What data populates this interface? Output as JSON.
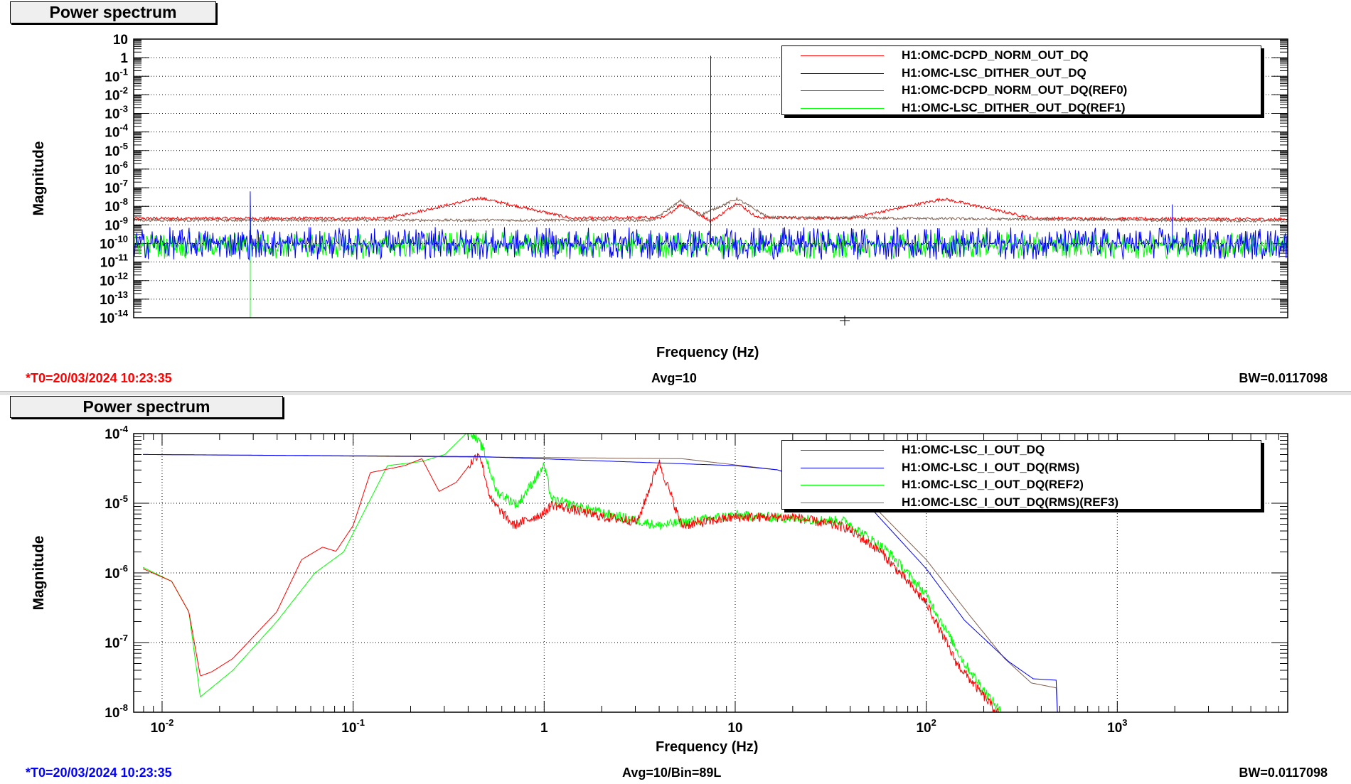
{
  "chart_data": [
    {
      "type": "line",
      "title": "Power spectrum",
      "xlabel": "Frequency (Hz)",
      "ylabel": "Magnitude",
      "xscale": "linear",
      "xlim": [
        0,
        100
      ],
      "x_tick_labels": [],
      "yscale": "log",
      "ylim": [
        1e-14,
        10
      ],
      "y_ticks_log10": [
        1,
        0,
        -1,
        -2,
        -3,
        -4,
        -5,
        -6,
        -7,
        -8,
        -9,
        -10,
        -11,
        -12,
        -13,
        -14
      ],
      "y_tick_labels": [
        "10",
        "1",
        "10^-1",
        "10^-2",
        "10^-3",
        "10^-4",
        "10^-5",
        "10^-6",
        "10^-7",
        "10^-8",
        "10^-9",
        "10^-10",
        "10^-11",
        "10^-12",
        "10^-13",
        "10^-14"
      ],
      "grid": "horizontal",
      "legend_position": "top-right",
      "series": [
        {
          "name": "H1:OMC-DCPD_NORM_OUT_DQ",
          "color": "#ff0000",
          "noise_dex": 0.08,
          "log10_points": [
            [
              0,
              -8.65
            ],
            [
              22,
              -8.65
            ],
            [
              30,
              -7.55
            ],
            [
              38,
              -8.65
            ],
            [
              46,
              -8.6
            ],
            [
              47.4,
              -7.9
            ],
            [
              49,
              -8.4
            ],
            [
              50,
              -8.8
            ],
            [
              51,
              -8.4
            ],
            [
              52.3,
              -7.8
            ],
            [
              54,
              -8.6
            ],
            [
              62,
              -8.65
            ],
            [
              70.2,
              -7.6
            ],
            [
              78,
              -8.65
            ],
            [
              100,
              -8.7
            ]
          ],
          "spikes": []
        },
        {
          "name": "H1:OMC-LSC_DITHER_OUT_DQ",
          "color": "#0000ff",
          "noise_dex": 0.55,
          "log10_points": [
            [
              0,
              -10
            ],
            [
              100,
              -10
            ]
          ],
          "spikes": [
            [
              10.1,
              -7.2
            ],
            [
              50,
              0.1
            ],
            [
              90,
              -7.9
            ]
          ]
        },
        {
          "name": "H1:OMC-LSC_DITHER_OUT_DQ(REF1)",
          "color": "#00ff00",
          "noise_dex": 0.45,
          "log10_points": [
            [
              0,
              -10.1
            ],
            [
              100,
              -10.1
            ]
          ],
          "spikes": [
            [
              10.1,
              -7.4
            ],
            [
              10.1,
              -14
            ]
          ]
        },
        {
          "name": "H1:OMC-DCPD_NORM_OUT_DQ(REF0)",
          "color": "#7f5f4f",
          "noise_dex": 0.07,
          "log10_points": [
            [
              0,
              -8.75
            ],
            [
              45,
              -8.75
            ],
            [
              47.4,
              -7.7
            ],
            [
              49,
              -8.5
            ],
            [
              52.3,
              -7.6
            ],
            [
              55,
              -8.6
            ],
            [
              100,
              -8.8
            ]
          ],
          "spikes": []
        }
      ],
      "legend_order": [
        0,
        1,
        3,
        2
      ],
      "footer": {
        "t0": "*T0=20/03/2024 10:23:35",
        "t0_color": "#ff0000",
        "avg": "Avg=10",
        "bw": "BW=0.0117098"
      }
    },
    {
      "type": "line",
      "title": "Power spectrum",
      "xlabel": "Frequency (Hz)",
      "ylabel": "Magnitude",
      "xscale": "log",
      "xlim": [
        0.0071,
        7800
      ],
      "x_ticks_log10": [
        -2,
        -1,
        0,
        1,
        2,
        3
      ],
      "x_tick_labels": [
        "10^-2",
        "10^-1",
        "1",
        "10",
        "10^2",
        "10^3"
      ],
      "yscale": "log",
      "ylim": [
        1e-08,
        0.0001
      ],
      "y_ticks_log10": [
        -4,
        -5,
        -6,
        -7,
        -8
      ],
      "y_tick_labels": [
        "10^-4",
        "10^-5",
        "10^-6",
        "10^-7",
        "10^-8"
      ],
      "grid": "both",
      "legend_position": "top-right",
      "series": [
        {
          "name": "H1:OMC-LSC_I_OUT_DQ",
          "color": "#ff0000",
          "noise_dex": 0.07,
          "noise_start_log10_hz": -0.4,
          "log10_points": [
            [
              -2.1,
              -5.94
            ],
            [
              -1.95,
              -6.12
            ],
            [
              -1.86,
              -6.56
            ],
            [
              -1.8,
              -7.48
            ],
            [
              -1.74,
              -7.42
            ],
            [
              -1.63,
              -7.23
            ],
            [
              -1.4,
              -6.56
            ],
            [
              -1.27,
              -5.81
            ],
            [
              -1.16,
              -5.63
            ],
            [
              -1.09,
              -5.69
            ],
            [
              -1.0,
              -5.32
            ],
            [
              -0.91,
              -4.56
            ],
            [
              -0.73,
              -4.46
            ],
            [
              -0.64,
              -4.36
            ],
            [
              -0.55,
              -4.83
            ],
            [
              -0.46,
              -4.7
            ],
            [
              -0.34,
              -4.27
            ],
            [
              -0.28,
              -4.95
            ],
            [
              -0.16,
              -5.32
            ],
            [
              0,
              -5.14
            ],
            [
              0.04,
              -5.02
            ],
            [
              0.31,
              -5.2
            ],
            [
              0.49,
              -5.26
            ],
            [
              0.6,
              -4.4
            ],
            [
              0.72,
              -5.32
            ],
            [
              1.0,
              -5.2
            ],
            [
              1.31,
              -5.2
            ],
            [
              1.58,
              -5.35
            ],
            [
              1.76,
              -5.69
            ],
            [
              2.0,
              -6.43
            ],
            [
              2.16,
              -7.3
            ],
            [
              2.37,
              -8.0
            ],
            [
              2.45,
              -8.3
            ]
          ]
        },
        {
          "name": "H1:OMC-LSC_I_OUT_DQ(RMS)",
          "color": "#0000ff",
          "noise_dex": 0,
          "log10_points": [
            [
              -2.1,
              -4.3
            ],
            [
              -0.34,
              -4.33
            ],
            [
              1.0,
              -4.46
            ],
            [
              1.22,
              -4.52
            ],
            [
              1.67,
              -4.95
            ],
            [
              2.0,
              -5.94
            ],
            [
              2.2,
              -6.68
            ],
            [
              2.43,
              -7.27
            ],
            [
              2.56,
              -7.52
            ],
            [
              2.68,
              -7.54
            ],
            [
              2.69,
              -8.2
            ]
          ]
        },
        {
          "name": "H1:OMC-LSC_I_OUT_DQ(REF2)",
          "color": "#00ff00",
          "noise_dex": 0.07,
          "noise_start_log10_hz": -0.4,
          "log10_points": [
            [
              -2.1,
              -5.92
            ],
            [
              -1.95,
              -6.12
            ],
            [
              -1.86,
              -6.56
            ],
            [
              -1.8,
              -7.78
            ],
            [
              -1.63,
              -7.4
            ],
            [
              -1.4,
              -6.7
            ],
            [
              -1.2,
              -6.0
            ],
            [
              -1.05,
              -5.7
            ],
            [
              -0.82,
              -4.46
            ],
            [
              -0.64,
              -4.4
            ],
            [
              -0.52,
              -4.3
            ],
            [
              -0.39,
              -3.95
            ],
            [
              -0.32,
              -4.21
            ],
            [
              -0.25,
              -4.83
            ],
            [
              -0.14,
              -5.02
            ],
            [
              0,
              -4.46
            ],
            [
              0.04,
              -4.95
            ],
            [
              0.31,
              -5.14
            ],
            [
              0.6,
              -5.32
            ],
            [
              1.0,
              -5.17
            ],
            [
              1.58,
              -5.26
            ],
            [
              1.8,
              -5.69
            ],
            [
              2.0,
              -6.31
            ],
            [
              2.2,
              -7.3
            ],
            [
              2.39,
              -8.0
            ],
            [
              2.47,
              -8.3
            ]
          ]
        },
        {
          "name": "H1:OMC-LSC_I_OUT_DQ(RMS)(REF3)",
          "color": "#7f5f4f",
          "noise_dex": 0,
          "log10_points": [
            [
              -2.1,
              -4.3
            ],
            [
              0.72,
              -4.36
            ],
            [
              1.22,
              -4.52
            ],
            [
              1.67,
              -4.89
            ],
            [
              2.0,
              -5.81
            ],
            [
              2.23,
              -6.62
            ],
            [
              2.41,
              -7.23
            ],
            [
              2.55,
              -7.58
            ],
            [
              2.68,
              -7.65
            ],
            [
              2.69,
              -8.2
            ]
          ]
        }
      ],
      "legend_order": [
        0,
        1,
        2,
        3
      ],
      "footer": {
        "t0": "*T0=20/03/2024 10:23:35",
        "t0_color": "#0000ff",
        "avg": "Avg=10/Bin=89L",
        "bw": "BW=0.0117098"
      }
    }
  ]
}
